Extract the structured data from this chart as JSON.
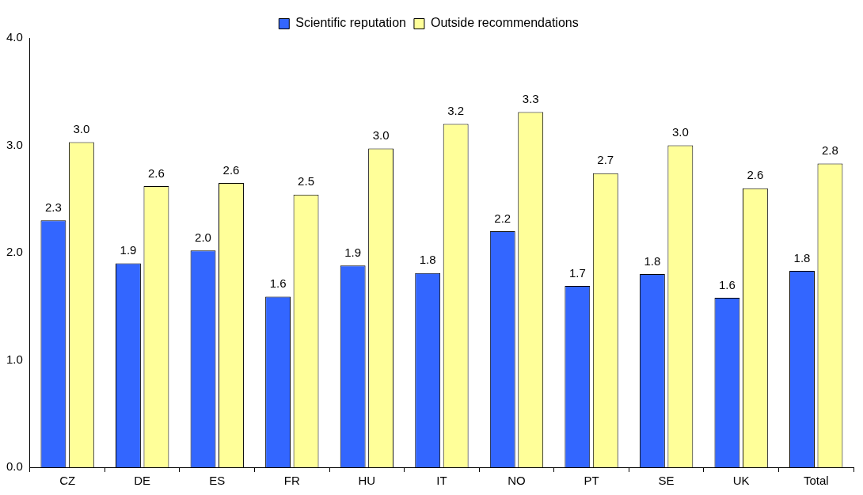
{
  "chart_data": {
    "type": "bar",
    "categories": [
      "CZ",
      "DE",
      "ES",
      "FR",
      "HU",
      "IT",
      "NO",
      "PT",
      "SE",
      "UK",
      "Total"
    ],
    "series": [
      {
        "name": "Scientific reputation",
        "color": "#3366ff",
        "values": [
          2.3,
          1.9,
          2.02,
          1.59,
          1.88,
          1.81,
          2.2,
          1.69,
          1.8,
          1.58,
          1.83
        ],
        "value_labels": [
          "2.3",
          "1.9",
          "2.0",
          "1.6",
          "1.9",
          "1.8",
          "2.2",
          "1.7",
          "1.8",
          "1.6",
          "1.8"
        ]
      },
      {
        "name": "Outside recommendations",
        "color": "#ffff99",
        "values": [
          3.03,
          2.62,
          2.65,
          2.54,
          2.97,
          3.2,
          3.31,
          2.74,
          3.0,
          2.6,
          2.83
        ],
        "value_labels": [
          "3.0",
          "2.6",
          "2.6",
          "2.5",
          "3.0",
          "3.2",
          "3.3",
          "2.7",
          "3.0",
          "2.6",
          "2.8"
        ]
      }
    ],
    "ylim": [
      0,
      4
    ],
    "yticks": [
      {
        "value": 0,
        "label": "0.0"
      },
      {
        "value": 1,
        "label": "1.0"
      },
      {
        "value": 2,
        "label": "2.0"
      },
      {
        "value": 3,
        "label": "3.0"
      },
      {
        "value": 4,
        "label": "4.0"
      }
    ],
    "grid": false,
    "legend": "top"
  }
}
